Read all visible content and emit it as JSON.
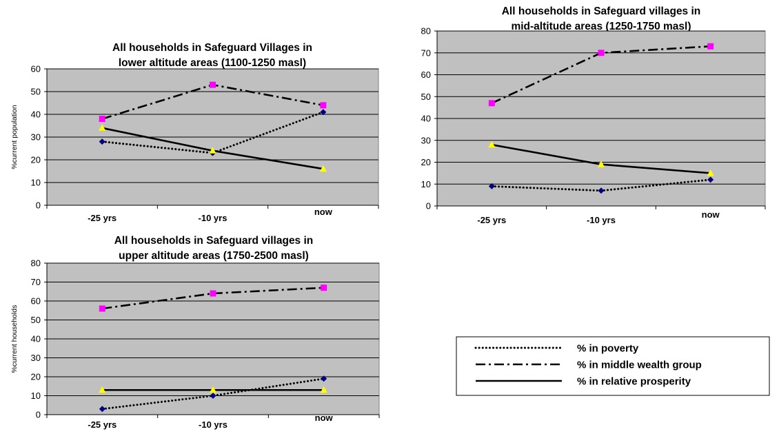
{
  "chart_data": [
    {
      "type": "line",
      "title_lines": [
        "All households in Safeguard Villages in",
        "lower altitude areas (1100-1250 masl)"
      ],
      "ylabel": "%current population",
      "categories": [
        "-25 yrs",
        "-10 yrs",
        "now"
      ],
      "ylim": [
        0,
        60
      ],
      "yticks": [
        0,
        10,
        20,
        30,
        40,
        50,
        60
      ],
      "grid": true,
      "series": [
        {
          "name": "% in poverty",
          "values": [
            28,
            23,
            41
          ]
        },
        {
          "name": "% in middle wealth group",
          "values": [
            38,
            53,
            44
          ]
        },
        {
          "name": "% in relative prosperity",
          "values": [
            34,
            24,
            16
          ]
        }
      ]
    },
    {
      "type": "line",
      "title_lines": [
        "All households in Safeguard villages in",
        "mid-altitude areas (1250-1750 masl)"
      ],
      "ylabel": "",
      "categories": [
        "-25 yrs",
        "-10 yrs",
        "now"
      ],
      "ylim": [
        0,
        80
      ],
      "yticks": [
        0,
        10,
        20,
        30,
        40,
        50,
        60,
        70,
        80
      ],
      "grid": true,
      "series": [
        {
          "name": "% in poverty",
          "values": [
            9,
            7,
            12
          ]
        },
        {
          "name": "% in middle wealth group",
          "values": [
            47,
            70,
            73
          ]
        },
        {
          "name": "% in relative prosperity",
          "values": [
            28,
            19,
            15
          ]
        }
      ]
    },
    {
      "type": "line",
      "title_lines": [
        "All households in Safeguard villages in",
        "upper altitude areas (1750-2500 masl)"
      ],
      "ylabel": "%current households",
      "categories": [
        "-25 yrs",
        "-10 yrs",
        "now"
      ],
      "ylim": [
        0,
        80
      ],
      "yticks": [
        0,
        10,
        20,
        30,
        40,
        50,
        60,
        70,
        80
      ],
      "grid": true,
      "series": [
        {
          "name": "% in poverty",
          "values": [
            3,
            10,
            19
          ]
        },
        {
          "name": "% in middle wealth group",
          "values": [
            56,
            64,
            67
          ]
        },
        {
          "name": "% in relative prosperity",
          "values": [
            13,
            13,
            13
          ]
        }
      ]
    }
  ],
  "legend": {
    "placement": "bottom-right",
    "entries": [
      {
        "label": "% in poverty",
        "style": "dotted"
      },
      {
        "label": "% in middle wealth group",
        "style": "dash-dot"
      },
      {
        "label": "% in relative prosperity",
        "style": "solid"
      }
    ]
  },
  "colors": {
    "plot_bg": "#c0c0c0",
    "line": "#000000",
    "poverty_marker": "#000080",
    "middle_marker": "#ff00ff",
    "prosperity_marker": "#ffff00"
  }
}
